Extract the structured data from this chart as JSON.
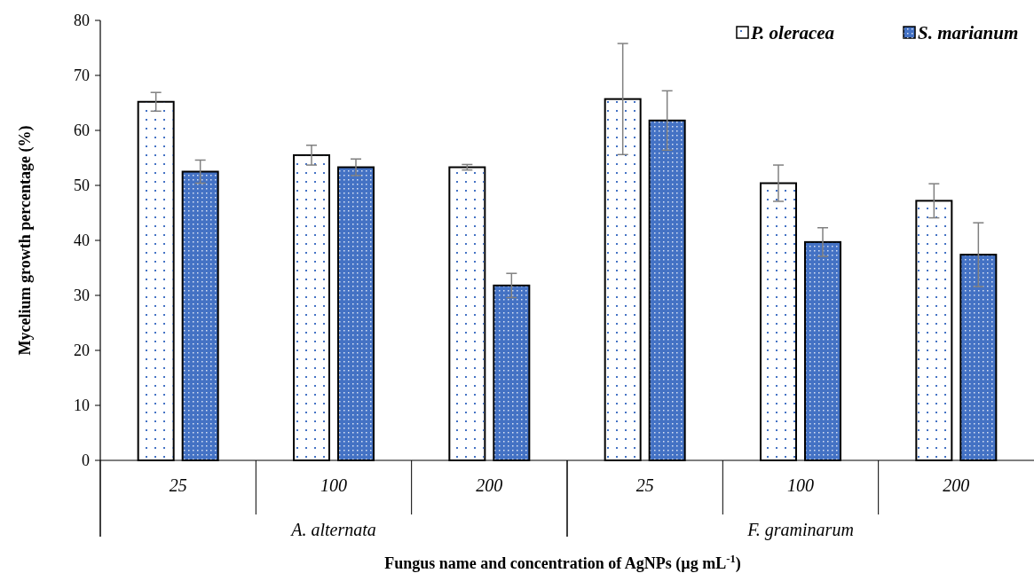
{
  "chart_data": {
    "type": "bar",
    "xlabel": "Fungus name and concentration of AgNPs (µg mL$^{-1}$)",
    "ylabel": "Mycelium growth percentage (%)",
    "categories": [
      "25",
      "100",
      "200",
      "25",
      "100",
      "200"
    ],
    "series": [
      {
        "name": "P. oleracea",
        "color": "#ffffff",
        "values": [
          65.2,
          55.5,
          53.3,
          65.7,
          50.4,
          47.2
        ],
        "errors": [
          1.7,
          1.8,
          0.5,
          10.1,
          3.3,
          3.1
        ]
      },
      {
        "name": "S. marianum",
        "color": "#4472c4",
        "values": [
          52.5,
          53.3,
          31.8,
          61.8,
          39.7,
          37.4
        ],
        "errors": [
          2.1,
          1.5,
          2.2,
          5.4,
          2.6,
          5.8
        ]
      }
    ],
    "annotations": [
      "A. alternata",
      "F. graminarum"
    ],
    "ylim": [
      0,
      80
    ],
    "yticks": [
      0,
      10,
      20,
      30,
      40,
      50,
      60,
      70,
      80
    ],
    "grid": false,
    "legend": "top right"
  }
}
